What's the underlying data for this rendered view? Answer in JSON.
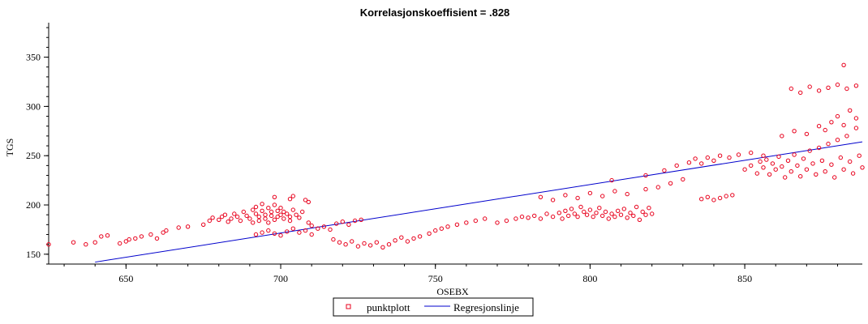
{
  "chart_data": {
    "type": "scatter",
    "title": "Korrelasjonskoeffisient =  .828",
    "xlabel": "OSEBX",
    "ylabel": "TGS",
    "xlim": [
      625,
      888
    ],
    "ylim": [
      140,
      385
    ],
    "xticks": [
      650,
      700,
      750,
      800,
      850
    ],
    "yticks": [
      150,
      200,
      250,
      300,
      350
    ],
    "legend_position": "bottom-center",
    "grid": false,
    "colors": {
      "points": "#e8001c",
      "line": "#0000cc",
      "axis": "#000000"
    },
    "series": [
      {
        "name": "punktplott",
        "kind": "scatter",
        "points": [
          [
            625,
            160
          ],
          [
            633,
            162
          ],
          [
            637,
            160
          ],
          [
            640,
            162
          ],
          [
            642,
            168
          ],
          [
            644,
            169
          ],
          [
            648,
            161
          ],
          [
            650,
            163
          ],
          [
            651,
            165
          ],
          [
            653,
            166
          ],
          [
            655,
            168
          ],
          [
            658,
            170
          ],
          [
            660,
            166
          ],
          [
            662,
            172
          ],
          [
            663,
            174
          ],
          [
            667,
            177
          ],
          [
            670,
            178
          ],
          [
            675,
            180
          ],
          [
            677,
            184
          ],
          [
            678,
            187
          ],
          [
            680,
            185
          ],
          [
            681,
            188
          ],
          [
            682,
            190
          ],
          [
            683,
            183
          ],
          [
            684,
            186
          ],
          [
            685,
            191
          ],
          [
            686,
            188
          ],
          [
            687,
            184
          ],
          [
            688,
            193
          ],
          [
            689,
            189
          ],
          [
            690,
            186
          ],
          [
            691,
            195
          ],
          [
            691,
            182
          ],
          [
            692,
            191
          ],
          [
            692,
            198
          ],
          [
            693,
            188
          ],
          [
            693,
            184
          ],
          [
            694,
            194
          ],
          [
            694,
            201
          ],
          [
            695,
            190
          ],
          [
            695,
            186
          ],
          [
            696,
            197
          ],
          [
            696,
            182
          ],
          [
            697,
            193
          ],
          [
            697,
            189
          ],
          [
            698,
            200
          ],
          [
            698,
            185
          ],
          [
            699,
            194
          ],
          [
            699,
            188
          ],
          [
            700,
            190
          ],
          [
            700,
            197
          ],
          [
            701,
            186
          ],
          [
            701,
            193
          ],
          [
            702,
            191
          ],
          [
            703,
            188
          ],
          [
            703,
            184
          ],
          [
            704,
            195
          ],
          [
            705,
            190
          ],
          [
            706,
            187
          ],
          [
            707,
            193
          ],
          [
            708,
            205
          ],
          [
            709,
            182
          ],
          [
            710,
            179
          ],
          [
            692,
            170
          ],
          [
            694,
            172
          ],
          [
            696,
            174
          ],
          [
            698,
            171
          ],
          [
            700,
            169
          ],
          [
            702,
            173
          ],
          [
            704,
            176
          ],
          [
            706,
            172
          ],
          [
            708,
            174
          ],
          [
            710,
            170
          ],
          [
            712,
            176
          ],
          [
            714,
            178
          ],
          [
            716,
            175
          ],
          [
            718,
            181
          ],
          [
            720,
            183
          ],
          [
            722,
            180
          ],
          [
            724,
            184
          ],
          [
            726,
            185
          ],
          [
            698,
            208
          ],
          [
            703,
            206
          ],
          [
            709,
            203
          ],
          [
            704,
            209
          ],
          [
            717,
            165
          ],
          [
            719,
            162
          ],
          [
            721,
            160
          ],
          [
            723,
            163
          ],
          [
            725,
            158
          ],
          [
            727,
            161
          ],
          [
            729,
            159
          ],
          [
            731,
            162
          ],
          [
            733,
            157
          ],
          [
            735,
            160
          ],
          [
            737,
            164
          ],
          [
            739,
            167
          ],
          [
            741,
            163
          ],
          [
            743,
            166
          ],
          [
            745,
            168
          ],
          [
            748,
            171
          ],
          [
            750,
            174
          ],
          [
            752,
            176
          ],
          [
            754,
            178
          ],
          [
            757,
            180
          ],
          [
            760,
            182
          ],
          [
            763,
            184
          ],
          [
            766,
            186
          ],
          [
            770,
            182
          ],
          [
            773,
            184
          ],
          [
            776,
            186
          ],
          [
            778,
            188
          ],
          [
            780,
            187
          ],
          [
            782,
            189
          ],
          [
            784,
            186
          ],
          [
            786,
            191
          ],
          [
            788,
            188
          ],
          [
            790,
            192
          ],
          [
            791,
            186
          ],
          [
            792,
            194
          ],
          [
            793,
            189
          ],
          [
            794,
            196
          ],
          [
            795,
            191
          ],
          [
            796,
            188
          ],
          [
            797,
            198
          ],
          [
            798,
            193
          ],
          [
            799,
            190
          ],
          [
            800,
            195
          ],
          [
            801,
            188
          ],
          [
            802,
            192
          ],
          [
            803,
            197
          ],
          [
            804,
            189
          ],
          [
            805,
            193
          ],
          [
            806,
            186
          ],
          [
            807,
            191
          ],
          [
            808,
            188
          ],
          [
            809,
            194
          ],
          [
            810,
            190
          ],
          [
            811,
            196
          ],
          [
            812,
            187
          ],
          [
            813,
            192
          ],
          [
            814,
            189
          ],
          [
            815,
            198
          ],
          [
            816,
            185
          ],
          [
            817,
            193
          ],
          [
            818,
            190
          ],
          [
            819,
            197
          ],
          [
            820,
            191
          ],
          [
            784,
            208
          ],
          [
            788,
            205
          ],
          [
            792,
            210
          ],
          [
            796,
            207
          ],
          [
            800,
            212
          ],
          [
            804,
            209
          ],
          [
            808,
            214
          ],
          [
            812,
            211
          ],
          [
            818,
            216
          ],
          [
            822,
            218
          ],
          [
            826,
            222
          ],
          [
            830,
            226
          ],
          [
            807,
            225
          ],
          [
            818,
            230
          ],
          [
            824,
            235
          ],
          [
            828,
            240
          ],
          [
            832,
            243
          ],
          [
            834,
            247
          ],
          [
            836,
            242
          ],
          [
            838,
            248
          ],
          [
            840,
            245
          ],
          [
            842,
            250
          ],
          [
            845,
            248
          ],
          [
            848,
            251
          ],
          [
            852,
            253
          ],
          [
            856,
            250
          ],
          [
            836,
            206
          ],
          [
            838,
            208
          ],
          [
            840,
            205
          ],
          [
            842,
            207
          ],
          [
            844,
            209
          ],
          [
            846,
            210
          ],
          [
            850,
            236
          ],
          [
            852,
            240
          ],
          [
            854,
            232
          ],
          [
            855,
            244
          ],
          [
            856,
            238
          ],
          [
            857,
            246
          ],
          [
            858,
            231
          ],
          [
            859,
            242
          ],
          [
            860,
            236
          ],
          [
            861,
            249
          ],
          [
            862,
            239
          ],
          [
            863,
            228
          ],
          [
            864,
            245
          ],
          [
            865,
            234
          ],
          [
            866,
            251
          ],
          [
            867,
            240
          ],
          [
            868,
            229
          ],
          [
            869,
            247
          ],
          [
            870,
            236
          ],
          [
            871,
            255
          ],
          [
            872,
            242
          ],
          [
            873,
            231
          ],
          [
            874,
            258
          ],
          [
            875,
            245
          ],
          [
            876,
            234
          ],
          [
            877,
            262
          ],
          [
            878,
            241
          ],
          [
            879,
            228
          ],
          [
            880,
            266
          ],
          [
            881,
            248
          ],
          [
            882,
            236
          ],
          [
            883,
            270
          ],
          [
            884,
            244
          ],
          [
            885,
            232
          ],
          [
            886,
            278
          ],
          [
            887,
            250
          ],
          [
            888,
            238
          ],
          [
            862,
            270
          ],
          [
            866,
            275
          ],
          [
            870,
            272
          ],
          [
            874,
            280
          ],
          [
            876,
            276
          ],
          [
            878,
            284
          ],
          [
            880,
            290
          ],
          [
            882,
            281
          ],
          [
            884,
            296
          ],
          [
            886,
            288
          ],
          [
            865,
            318
          ],
          [
            868,
            314
          ],
          [
            871,
            320
          ],
          [
            874,
            316
          ],
          [
            877,
            319
          ],
          [
            880,
            322
          ],
          [
            883,
            318
          ],
          [
            886,
            321
          ],
          [
            882,
            342
          ]
        ]
      },
      {
        "name": "Regresjonslinje",
        "kind": "line",
        "points": [
          [
            640,
            142
          ],
          [
            888,
            264
          ]
        ]
      }
    ]
  }
}
